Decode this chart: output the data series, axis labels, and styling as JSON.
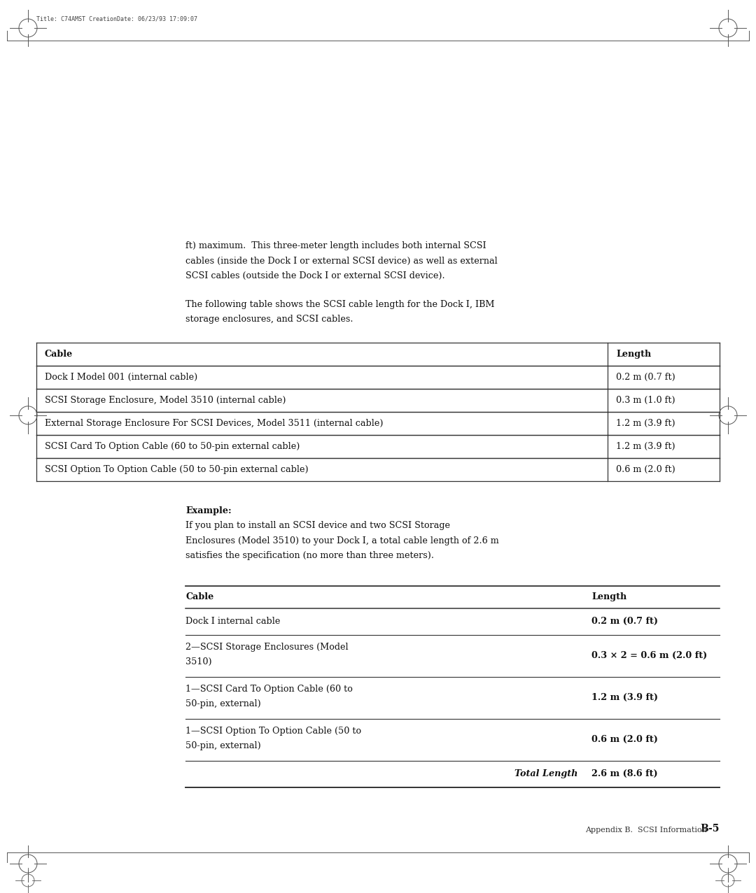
{
  "bg_color": "#ffffff",
  "page_width": 10.8,
  "page_height": 12.77,
  "margin_text": "Title: C74AMST CreationDate: 06/23/93 17:09:07",
  "footer_text": "Appendix B.  SCSI Information",
  "footer_bold": "B-5",
  "intro_text": [
    "ft) maximum.  This three-meter length includes both internal SCSI",
    "cables (inside the Dock I or external SCSI device) as well as external",
    "SCSI cables (outside the Dock I or external SCSI device).",
    "",
    "The following table shows the SCSI cable length for the Dock I, IBM",
    "storage enclosures, and SCSI cables."
  ],
  "table1_headers": [
    "Cable",
    "Length"
  ],
  "table1_rows": [
    [
      "Dock I Model 001 (internal cable)",
      "0.2 m (0.7 ft)"
    ],
    [
      "SCSI Storage Enclosure, Model 3510 (internal cable)",
      "0.3 m (1.0 ft)"
    ],
    [
      "External Storage Enclosure For SCSI Devices, Model 3511 (internal cable)",
      "1.2 m (3.9 ft)"
    ],
    [
      "SCSI Card To Option Cable (60 to 50-pin external cable)",
      "1.2 m (3.9 ft)"
    ],
    [
      "SCSI Option To Option Cable (50 to 50-pin external cable)",
      "0.6 m (2.0 ft)"
    ]
  ],
  "example_title": "Example:",
  "example_text": [
    "If you plan to install an SCSI device and two SCSI Storage",
    "Enclosures (Model 3510) to your Dock I, a total cable length of 2.6 m",
    "satisfies the specification (no more than three meters)."
  ],
  "table2_headers": [
    "Cable",
    "Length"
  ],
  "table2_rows": [
    [
      "Dock I internal cable",
      "0.2 m (0.7 ft)",
      false
    ],
    [
      "2—SCSI Storage Enclosures (Model\n3510)",
      "0.3 × 2 = 0.6 m (2.0 ft)",
      false
    ],
    [
      "1—SCSI Card To Option Cable (60 to\n50-pin, external)",
      "1.2 m (3.9 ft)",
      false
    ],
    [
      "1—SCSI Option To Option Cable (50 to\n50-pin, external)",
      "0.6 m (2.0 ft)",
      false
    ],
    [
      "Total Length",
      "2.6 m (8.6 ft)",
      true
    ]
  ]
}
